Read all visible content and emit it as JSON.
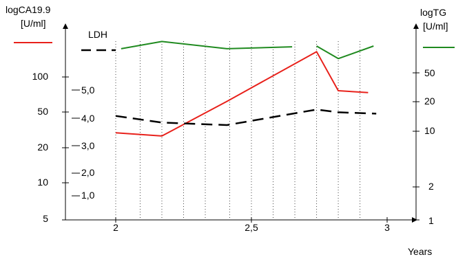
{
  "chart_data": {
    "type": "line",
    "xlabel": "Years",
    "x_ticks": [
      "2",
      "2,5",
      "3"
    ],
    "left_axis": {
      "label_line1": "logCA19.9",
      "label_line2": "[U/ml]",
      "scale": "log",
      "ticks": [
        "100",
        "50",
        "20",
        "10",
        "5"
      ],
      "ylim": [
        5,
        200
      ]
    },
    "ldh_axis": {
      "label": "LDH",
      "ticks": [
        "5,0",
        "4,0",
        "3,0",
        "2,0",
        "1,0"
      ]
    },
    "right_axis": {
      "label_line1": "logTG",
      "label_line2": "[U/ml]",
      "scale": "log",
      "ticks": [
        "50",
        "20",
        "10",
        "2",
        "1"
      ],
      "ylim": [
        1,
        150
      ]
    },
    "dotted_vertical_grid_x": [
      2.0,
      2.09,
      2.17,
      2.25,
      2.33,
      2.42,
      2.5,
      2.58,
      2.66,
      2.74,
      2.82,
      2.9
    ],
    "series": [
      {
        "name": "logCA19.9",
        "color": "#e8201a",
        "dash": "solid",
        "axis": "left",
        "x": [
          2.0,
          2.17,
          2.41,
          2.74,
          2.82,
          2.93
        ],
        "y": [
          31,
          29,
          60,
          170,
          75,
          72
        ]
      },
      {
        "name": "logTG",
        "color": "#1f8a1f",
        "dash": "solid",
        "axis": "right",
        "segments": [
          {
            "x": [
              2.02,
              2.17,
              2.41,
              2.65
            ],
            "y": [
              95,
              115,
              95,
              100
            ]
          },
          {
            "x": [
              2.74,
              2.82,
              2.95
            ],
            "y": [
              102,
              73,
              102
            ]
          }
        ]
      },
      {
        "name": "LDH",
        "color": "#000000",
        "dash": "dashed",
        "axis": "ldh",
        "x": [
          2.0,
          2.17,
          2.41,
          2.74,
          2.82,
          2.96
        ],
        "y": [
          4.07,
          3.83,
          3.74,
          4.3,
          4.2,
          4.15
        ]
      }
    ],
    "legend": [
      {
        "series": "logCA19.9",
        "placement": "top-left"
      },
      {
        "series": "LDH",
        "placement": "top-left"
      },
      {
        "series": "logTG",
        "placement": "top-right"
      }
    ],
    "grid": "vertical-dotted"
  }
}
